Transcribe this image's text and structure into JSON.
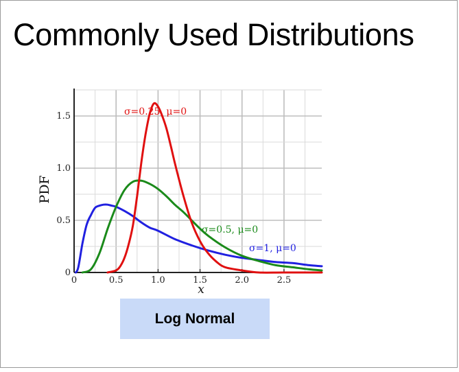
{
  "slide": {
    "title": "Commonly Used Distributions",
    "caption": "Log Normal"
  },
  "chart_data": {
    "type": "line",
    "title": "",
    "xlabel": "x",
    "ylabel": "PDF",
    "xlim": [
      0,
      2.95
    ],
    "ylim": [
      0,
      1.75
    ],
    "x_ticks": [
      {
        "value": 0,
        "label": "0"
      },
      {
        "value": 0.5,
        "label": "0.5"
      },
      {
        "value": 1.0,
        "label": "1.0"
      },
      {
        "value": 1.5,
        "label": "1.5"
      },
      {
        "value": 2.0,
        "label": "2.0"
      },
      {
        "value": 2.5,
        "label": "2.5"
      }
    ],
    "y_ticks": [
      {
        "value": 0,
        "label": "0"
      },
      {
        "value": 0.5,
        "label": "0.5"
      },
      {
        "value": 1.0,
        "label": "1.0"
      },
      {
        "value": 1.5,
        "label": "1.5"
      }
    ],
    "grid": true,
    "series": [
      {
        "name": "σ=1, μ=0",
        "color": "#2020e0",
        "sigma": 1,
        "mu": 0,
        "x": [
          0.02,
          0.05,
          0.1,
          0.15,
          0.2,
          0.25,
          0.3,
          0.35,
          0.4,
          0.45,
          0.5,
          0.6,
          0.7,
          0.8,
          0.9,
          1.0,
          1.2,
          1.4,
          1.6,
          1.8,
          2.0,
          2.2,
          2.4,
          2.6,
          2.8,
          2.95
        ],
        "y": [
          0.0,
          0.05,
          0.28,
          0.46,
          0.55,
          0.62,
          0.64,
          0.65,
          0.65,
          0.64,
          0.63,
          0.59,
          0.54,
          0.48,
          0.43,
          0.4,
          0.32,
          0.26,
          0.21,
          0.17,
          0.14,
          0.12,
          0.1,
          0.09,
          0.07,
          0.06
        ]
      },
      {
        "name": "σ=0.5, μ=0",
        "color": "#1a8a1a",
        "sigma": 0.5,
        "mu": 0,
        "x": [
          0.1,
          0.2,
          0.3,
          0.4,
          0.5,
          0.6,
          0.7,
          0.8,
          0.9,
          1.0,
          1.1,
          1.2,
          1.3,
          1.4,
          1.5,
          1.6,
          1.8,
          2.0,
          2.2,
          2.4,
          2.6,
          2.8,
          2.95
        ],
        "y": [
          0.0,
          0.03,
          0.18,
          0.42,
          0.63,
          0.79,
          0.87,
          0.88,
          0.85,
          0.8,
          0.73,
          0.65,
          0.58,
          0.5,
          0.42,
          0.35,
          0.24,
          0.16,
          0.11,
          0.07,
          0.05,
          0.03,
          0.02
        ]
      },
      {
        "name": "σ=0.25, μ=0",
        "color": "#e01010",
        "sigma": 0.25,
        "mu": 0,
        "x": [
          0.4,
          0.5,
          0.55,
          0.6,
          0.65,
          0.7,
          0.75,
          0.8,
          0.85,
          0.9,
          0.95,
          1.0,
          1.05,
          1.1,
          1.15,
          1.2,
          1.3,
          1.4,
          1.5,
          1.6,
          1.7,
          1.8,
          2.0,
          2.2,
          2.5,
          2.95
        ],
        "y": [
          0.0,
          0.02,
          0.06,
          0.14,
          0.27,
          0.45,
          0.73,
          1.05,
          1.32,
          1.52,
          1.62,
          1.59,
          1.5,
          1.38,
          1.22,
          1.05,
          0.74,
          0.48,
          0.3,
          0.18,
          0.1,
          0.05,
          0.02,
          0.0,
          0.0,
          0.0
        ]
      }
    ]
  }
}
